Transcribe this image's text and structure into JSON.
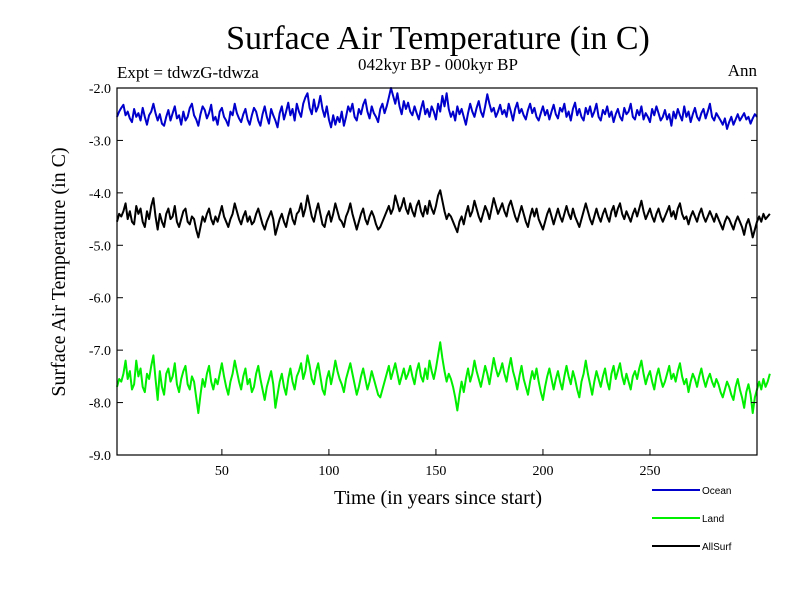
{
  "chart_data": {
    "type": "line",
    "title": "Surface Air Temperature (in C)",
    "subtitle": "042kyr BP - 000kyr BP",
    "experiment": "Expt = tdwzG-tdwza",
    "season": "Ann",
    "xlabel": "Time (in years since start)",
    "ylabel": "Surface Air Temperature (in C)",
    "xlim": [
      1,
      300
    ],
    "ylim": [
      -9.0,
      -2.0
    ],
    "x_ticks": [
      50,
      100,
      150,
      200,
      250
    ],
    "y_ticks": [
      "-2.0",
      "-3.0",
      "-4.0",
      "-5.0",
      "-6.0",
      "-7.0",
      "-8.0",
      "-9.0"
    ],
    "grid": false,
    "legend_position": "bottom-right",
    "x_start": 1,
    "x_step": 1,
    "series": [
      {
        "name": "Ocean",
        "color": "#0000cc",
        "values": [
          -2.55,
          -2.45,
          -2.38,
          -2.32,
          -2.52,
          -2.45,
          -2.58,
          -2.65,
          -2.4,
          -2.55,
          -2.48,
          -2.62,
          -2.38,
          -2.55,
          -2.7,
          -2.52,
          -2.45,
          -2.3,
          -2.48,
          -2.62,
          -2.5,
          -2.68,
          -2.72,
          -2.55,
          -2.42,
          -2.62,
          -2.48,
          -2.35,
          -2.58,
          -2.52,
          -2.7,
          -2.45,
          -2.62,
          -2.55,
          -2.38,
          -2.3,
          -2.52,
          -2.6,
          -2.72,
          -2.5,
          -2.35,
          -2.42,
          -2.58,
          -2.48,
          -2.32,
          -2.62,
          -2.55,
          -2.7,
          -2.45,
          -2.38,
          -2.55,
          -2.62,
          -2.72,
          -2.45,
          -2.52,
          -2.3,
          -2.48,
          -2.58,
          -2.65,
          -2.5,
          -2.4,
          -2.6,
          -2.7,
          -2.52,
          -2.38,
          -2.45,
          -2.62,
          -2.72,
          -2.5,
          -2.35,
          -2.55,
          -2.68,
          -2.4,
          -2.52,
          -2.62,
          -2.75,
          -2.48,
          -2.35,
          -2.6,
          -2.45,
          -2.28,
          -2.52,
          -2.4,
          -2.62,
          -2.3,
          -2.45,
          -2.55,
          -2.3,
          -2.18,
          -2.1,
          -2.38,
          -2.5,
          -2.22,
          -2.45,
          -2.35,
          -2.15,
          -2.4,
          -2.55,
          -2.35,
          -2.6,
          -2.75,
          -2.52,
          -2.7,
          -2.55,
          -2.65,
          -2.45,
          -2.72,
          -2.55,
          -2.35,
          -2.45,
          -2.3,
          -2.55,
          -2.62,
          -2.4,
          -2.5,
          -2.32,
          -2.22,
          -2.45,
          -2.58,
          -2.35,
          -2.48,
          -2.55,
          -2.65,
          -2.4,
          -2.3,
          -2.48,
          -2.35,
          -2.18,
          -2.0,
          -2.15,
          -2.3,
          -2.1,
          -2.35,
          -2.5,
          -2.25,
          -2.4,
          -2.28,
          -2.45,
          -2.52,
          -2.35,
          -2.48,
          -2.6,
          -2.4,
          -2.25,
          -2.5,
          -2.4,
          -2.55,
          -2.35,
          -2.45,
          -2.6,
          -2.3,
          -2.45,
          -2.15,
          -2.35,
          -2.1,
          -2.4,
          -2.55,
          -2.45,
          -2.62,
          -2.35,
          -2.5,
          -2.4,
          -2.55,
          -2.7,
          -2.48,
          -2.3,
          -2.45,
          -2.55,
          -2.38,
          -2.25,
          -2.45,
          -2.55,
          -2.35,
          -2.12,
          -2.3,
          -2.45,
          -2.38,
          -2.55,
          -2.45,
          -2.32,
          -2.5,
          -2.42,
          -2.55,
          -2.3,
          -2.45,
          -2.62,
          -2.4,
          -2.28,
          -2.48,
          -2.4,
          -2.52,
          -2.6,
          -2.42,
          -2.3,
          -2.48,
          -2.38,
          -2.55,
          -2.62,
          -2.48,
          -2.35,
          -2.52,
          -2.42,
          -2.6,
          -2.45,
          -2.32,
          -2.5,
          -2.58,
          -2.38,
          -2.45,
          -2.3,
          -2.55,
          -2.45,
          -2.62,
          -2.4,
          -2.28,
          -2.52,
          -2.4,
          -2.55,
          -2.62,
          -2.38,
          -2.5,
          -2.35,
          -2.55,
          -2.45,
          -2.3,
          -2.55,
          -2.62,
          -2.42,
          -2.5,
          -2.35,
          -2.55,
          -2.45,
          -2.65,
          -2.5,
          -2.4,
          -2.55,
          -2.62,
          -2.38,
          -2.5,
          -2.45,
          -2.3,
          -2.55,
          -2.6,
          -2.42,
          -2.52,
          -2.35,
          -2.6,
          -2.48,
          -2.55,
          -2.65,
          -2.4,
          -2.52,
          -2.35,
          -2.48,
          -2.62,
          -2.55,
          -2.42,
          -2.6,
          -2.5,
          -2.72,
          -2.45,
          -2.58,
          -2.4,
          -2.52,
          -2.62,
          -2.35,
          -2.55,
          -2.45,
          -2.65,
          -2.5,
          -2.38,
          -2.55,
          -2.62,
          -2.48,
          -2.4,
          -2.58,
          -2.45,
          -2.3,
          -2.55,
          -2.62,
          -2.48,
          -2.55,
          -2.62,
          -2.7,
          -2.58,
          -2.78,
          -2.65,
          -2.55,
          -2.7,
          -2.6,
          -2.5,
          -2.62,
          -2.55,
          -2.48,
          -2.6,
          -2.55,
          -2.68,
          -2.58,
          -2.5,
          -2.55
        ]
      },
      {
        "name": "Land",
        "color": "#00ee00",
        "values": [
          -7.7,
          -7.55,
          -7.6,
          -7.45,
          -7.2,
          -7.55,
          -7.4,
          -7.75,
          -7.65,
          -7.2,
          -7.5,
          -7.35,
          -7.7,
          -7.8,
          -7.45,
          -7.55,
          -7.3,
          -7.1,
          -7.55,
          -7.95,
          -7.4,
          -7.7,
          -7.85,
          -7.45,
          -7.35,
          -7.6,
          -7.5,
          -7.25,
          -7.65,
          -7.8,
          -7.55,
          -7.4,
          -7.3,
          -7.65,
          -7.75,
          -7.5,
          -7.6,
          -7.9,
          -8.2,
          -7.85,
          -7.55,
          -7.7,
          -7.45,
          -7.3,
          -7.6,
          -7.75,
          -7.55,
          -7.65,
          -7.45,
          -7.25,
          -7.5,
          -7.7,
          -7.85,
          -7.6,
          -7.45,
          -7.2,
          -7.4,
          -7.6,
          -7.75,
          -7.5,
          -7.35,
          -7.65,
          -7.55,
          -7.8,
          -7.7,
          -7.45,
          -7.3,
          -7.55,
          -7.75,
          -7.95,
          -7.7,
          -7.55,
          -7.4,
          -7.65,
          -8.1,
          -7.85,
          -7.6,
          -7.45,
          -7.7,
          -7.85,
          -7.55,
          -7.35,
          -7.6,
          -7.75,
          -7.5,
          -7.4,
          -7.25,
          -7.55,
          -7.4,
          -7.1,
          -7.3,
          -7.55,
          -7.65,
          -7.4,
          -7.25,
          -7.5,
          -7.75,
          -7.85,
          -7.55,
          -7.4,
          -7.65,
          -7.45,
          -7.2,
          -7.4,
          -7.55,
          -7.65,
          -7.8,
          -7.55,
          -7.4,
          -7.25,
          -7.45,
          -7.65,
          -7.85,
          -7.7,
          -7.5,
          -7.35,
          -7.55,
          -7.75,
          -7.6,
          -7.4,
          -7.55,
          -7.7,
          -7.85,
          -7.9,
          -7.75,
          -7.6,
          -7.45,
          -7.3,
          -7.55,
          -7.4,
          -7.25,
          -7.45,
          -7.65,
          -7.5,
          -7.35,
          -7.55,
          -7.45,
          -7.3,
          -7.5,
          -7.65,
          -7.4,
          -7.25,
          -7.5,
          -7.6,
          -7.35,
          -7.55,
          -7.2,
          -7.4,
          -7.55,
          -7.35,
          -7.1,
          -6.85,
          -7.15,
          -7.4,
          -7.6,
          -7.45,
          -7.55,
          -7.7,
          -7.9,
          -8.15,
          -7.85,
          -7.6,
          -7.8,
          -7.55,
          -7.35,
          -7.6,
          -7.45,
          -7.2,
          -7.4,
          -7.55,
          -7.7,
          -7.5,
          -7.3,
          -7.45,
          -7.65,
          -7.4,
          -7.15,
          -7.35,
          -7.5,
          -7.4,
          -7.25,
          -7.45,
          -7.6,
          -7.35,
          -7.15,
          -7.4,
          -7.55,
          -7.75,
          -7.5,
          -7.3,
          -7.55,
          -7.7,
          -7.85,
          -7.6,
          -7.4,
          -7.55,
          -7.35,
          -7.6,
          -7.8,
          -7.95,
          -7.7,
          -7.5,
          -7.35,
          -7.55,
          -7.75,
          -7.55,
          -7.4,
          -7.6,
          -7.75,
          -7.5,
          -7.3,
          -7.5,
          -7.65,
          -7.4,
          -7.55,
          -7.75,
          -7.9,
          -7.6,
          -7.45,
          -7.2,
          -7.45,
          -7.65,
          -7.85,
          -7.6,
          -7.4,
          -7.55,
          -7.7,
          -7.5,
          -7.35,
          -7.6,
          -7.75,
          -7.45,
          -7.3,
          -7.55,
          -7.4,
          -7.25,
          -7.5,
          -7.65,
          -7.45,
          -7.6,
          -7.75,
          -7.5,
          -7.4,
          -7.55,
          -7.35,
          -7.2,
          -7.45,
          -7.65,
          -7.5,
          -7.4,
          -7.6,
          -7.75,
          -7.5,
          -7.35,
          -7.55,
          -7.7,
          -7.6,
          -7.45,
          -7.3,
          -7.55,
          -7.45,
          -7.6,
          -7.4,
          -7.25,
          -7.5,
          -7.65,
          -7.55,
          -7.8,
          -7.6,
          -7.45,
          -7.55,
          -7.7,
          -7.5,
          -7.35,
          -7.55,
          -7.7,
          -7.55,
          -7.45,
          -7.6,
          -7.7,
          -7.55,
          -7.65,
          -7.8,
          -7.9,
          -7.75,
          -7.6,
          -7.7,
          -7.85,
          -7.95,
          -7.7,
          -7.55,
          -7.75,
          -7.9,
          -8.1,
          -7.8,
          -7.65,
          -7.85,
          -8.2,
          -7.9,
          -7.75,
          -7.6,
          -7.75,
          -7.55,
          -7.7,
          -7.6,
          -7.45
        ]
      },
      {
        "name": "AllSurf",
        "color": "#000000",
        "values": [
          -4.55,
          -4.4,
          -4.45,
          -4.35,
          -4.2,
          -4.5,
          -4.35,
          -4.55,
          -4.6,
          -4.25,
          -4.4,
          -4.3,
          -4.55,
          -4.65,
          -4.35,
          -4.5,
          -4.25,
          -4.1,
          -4.45,
          -4.7,
          -4.4,
          -4.55,
          -4.65,
          -4.4,
          -4.3,
          -4.5,
          -4.45,
          -4.25,
          -4.55,
          -4.65,
          -4.5,
          -4.35,
          -4.3,
          -4.55,
          -4.6,
          -4.45,
          -4.5,
          -4.7,
          -4.85,
          -4.65,
          -4.45,
          -4.55,
          -4.4,
          -4.3,
          -4.5,
          -4.6,
          -4.45,
          -4.55,
          -4.4,
          -4.25,
          -4.45,
          -4.55,
          -4.65,
          -4.5,
          -4.4,
          -4.2,
          -4.35,
          -4.5,
          -4.6,
          -4.45,
          -4.35,
          -4.55,
          -4.45,
          -4.6,
          -4.55,
          -4.4,
          -4.3,
          -4.45,
          -4.6,
          -4.7,
          -4.55,
          -4.45,
          -4.35,
          -4.5,
          -4.8,
          -4.65,
          -4.5,
          -4.4,
          -4.55,
          -4.65,
          -4.45,
          -4.3,
          -4.5,
          -4.6,
          -4.4,
          -4.35,
          -4.2,
          -4.45,
          -4.3,
          -4.05,
          -4.25,
          -4.45,
          -4.55,
          -4.35,
          -4.2,
          -4.4,
          -4.6,
          -4.65,
          -4.45,
          -4.35,
          -4.55,
          -4.4,
          -4.2,
          -4.35,
          -4.5,
          -4.55,
          -4.65,
          -4.45,
          -4.35,
          -4.2,
          -4.4,
          -4.55,
          -4.7,
          -4.55,
          -4.4,
          -4.3,
          -4.5,
          -4.6,
          -4.45,
          -4.35,
          -4.45,
          -4.6,
          -4.7,
          -4.65,
          -4.55,
          -4.45,
          -4.35,
          -4.25,
          -4.4,
          -4.3,
          -4.05,
          -4.2,
          -4.35,
          -4.25,
          -4.1,
          -4.3,
          -4.4,
          -4.2,
          -4.35,
          -4.45,
          -4.25,
          -4.15,
          -4.35,
          -4.45,
          -4.25,
          -4.4,
          -4.15,
          -4.3,
          -4.4,
          -4.25,
          -4.05,
          -3.95,
          -4.15,
          -4.35,
          -4.5,
          -4.4,
          -4.45,
          -4.55,
          -4.65,
          -4.75,
          -4.55,
          -4.45,
          -4.6,
          -4.4,
          -4.25,
          -4.45,
          -4.35,
          -4.15,
          -4.3,
          -4.45,
          -4.55,
          -4.4,
          -4.25,
          -4.35,
          -4.5,
          -4.3,
          -4.1,
          -4.25,
          -4.4,
          -4.3,
          -4.2,
          -4.35,
          -4.45,
          -4.25,
          -4.15,
          -4.3,
          -4.45,
          -4.55,
          -4.4,
          -4.25,
          -4.4,
          -4.55,
          -4.65,
          -4.45,
          -4.3,
          -4.45,
          -4.3,
          -4.5,
          -4.6,
          -4.7,
          -4.55,
          -4.4,
          -4.3,
          -4.45,
          -4.6,
          -4.45,
          -4.3,
          -4.45,
          -4.55,
          -4.4,
          -4.25,
          -4.4,
          -4.5,
          -4.3,
          -4.45,
          -4.55,
          -4.65,
          -4.5,
          -4.35,
          -4.2,
          -4.35,
          -4.5,
          -4.6,
          -4.45,
          -4.3,
          -4.45,
          -4.55,
          -4.4,
          -4.3,
          -4.45,
          -4.55,
          -4.35,
          -4.25,
          -4.45,
          -4.3,
          -4.2,
          -4.4,
          -4.5,
          -4.35,
          -4.45,
          -4.55,
          -4.4,
          -4.3,
          -4.45,
          -4.3,
          -4.15,
          -4.35,
          -4.5,
          -4.4,
          -4.3,
          -4.45,
          -4.55,
          -4.4,
          -4.3,
          -4.45,
          -4.55,
          -4.45,
          -4.35,
          -4.25,
          -4.45,
          -4.35,
          -4.5,
          -4.3,
          -4.2,
          -4.4,
          -4.5,
          -4.45,
          -4.6,
          -4.45,
          -4.35,
          -4.45,
          -4.55,
          -4.4,
          -4.3,
          -4.45,
          -4.55,
          -4.45,
          -4.35,
          -4.45,
          -4.55,
          -4.4,
          -4.5,
          -4.6,
          -4.7,
          -4.55,
          -4.45,
          -4.5,
          -4.6,
          -4.7,
          -4.55,
          -4.45,
          -4.55,
          -4.65,
          -4.8,
          -4.6,
          -4.5,
          -4.65,
          -4.85,
          -4.7,
          -4.55,
          -4.45,
          -4.55,
          -4.4,
          -4.5,
          -4.45,
          -4.4
        ]
      }
    ]
  }
}
